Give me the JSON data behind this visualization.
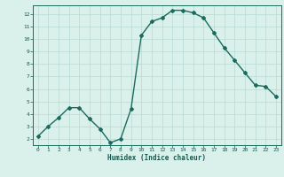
{
  "x": [
    0,
    1,
    2,
    3,
    4,
    5,
    6,
    7,
    8,
    9,
    10,
    11,
    12,
    13,
    14,
    15,
    16,
    17,
    18,
    19,
    20,
    21,
    22,
    23
  ],
  "y": [
    2.2,
    3.0,
    3.7,
    4.5,
    4.5,
    3.6,
    2.8,
    1.7,
    2.0,
    4.4,
    10.3,
    11.4,
    11.7,
    12.3,
    12.3,
    12.1,
    11.7,
    10.5,
    9.3,
    8.3,
    7.3,
    6.3,
    6.2,
    5.4
  ],
  "line_color": "#1a6b5e",
  "marker": "D",
  "marker_size": 2.0,
  "bg_color": "#daf0eb",
  "grid_color": "#b8d8d2",
  "xlabel": "Humidex (Indice chaleur)",
  "xlim": [
    -0.5,
    23.5
  ],
  "ylim": [
    1.5,
    12.7
  ],
  "yticks": [
    2,
    3,
    4,
    5,
    6,
    7,
    8,
    9,
    10,
    11,
    12
  ],
  "xticks": [
    0,
    1,
    2,
    3,
    4,
    5,
    6,
    7,
    8,
    9,
    10,
    11,
    12,
    13,
    14,
    15,
    16,
    17,
    18,
    19,
    20,
    21,
    22,
    23
  ],
  "tick_color": "#1a5a50",
  "spine_color": "#1a6b5e",
  "linewidth": 1.0
}
